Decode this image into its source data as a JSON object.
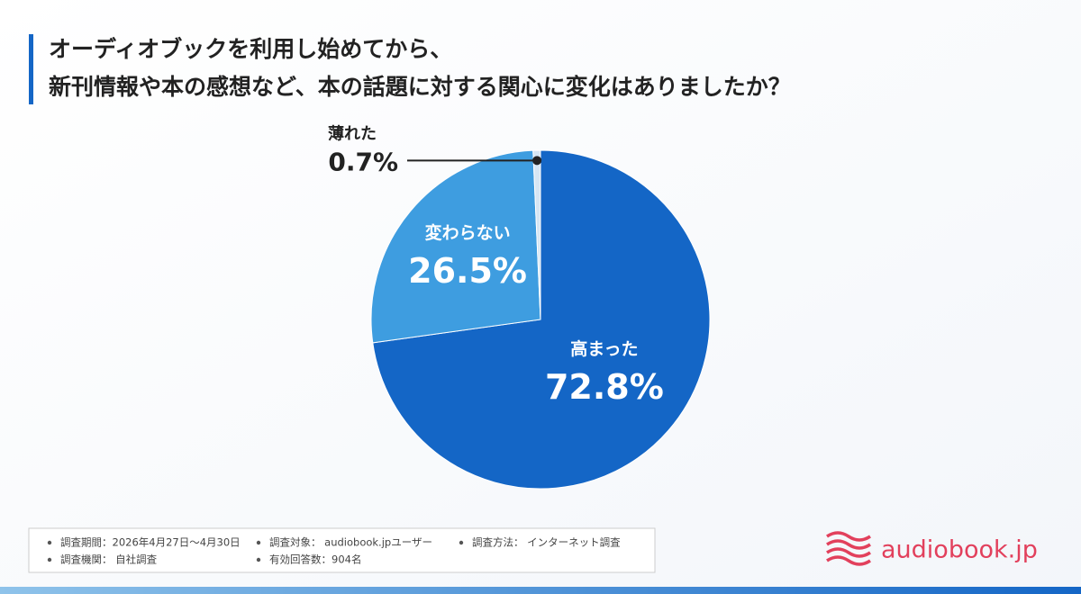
{
  "chart_data": {
    "type": "pie",
    "title": [
      "オーディオブックを利用し始めてから、",
      "新刊情報や本の感想など、本の話題に対する関心に変化はありましたか？"
    ],
    "categories": [
      "高まった",
      "変わらない",
      "薄れた"
    ],
    "values": [
      72.8,
      26.5,
      0.7
    ],
    "value_labels": [
      "72.8%",
      "26.5%",
      "0.7%"
    ],
    "colors": [
      "#1466c6",
      "#3e9de0",
      "#d6e6f3"
    ]
  },
  "notes": [
    "調査期間：2026年4月27日〜4月30日",
    "調査対象： audiobook.jpユーザー",
    "調査方法： インターネット調査",
    "調査機関： 自社調査",
    "有効回答数：904名"
  ],
  "logo": "audiobook.jp"
}
